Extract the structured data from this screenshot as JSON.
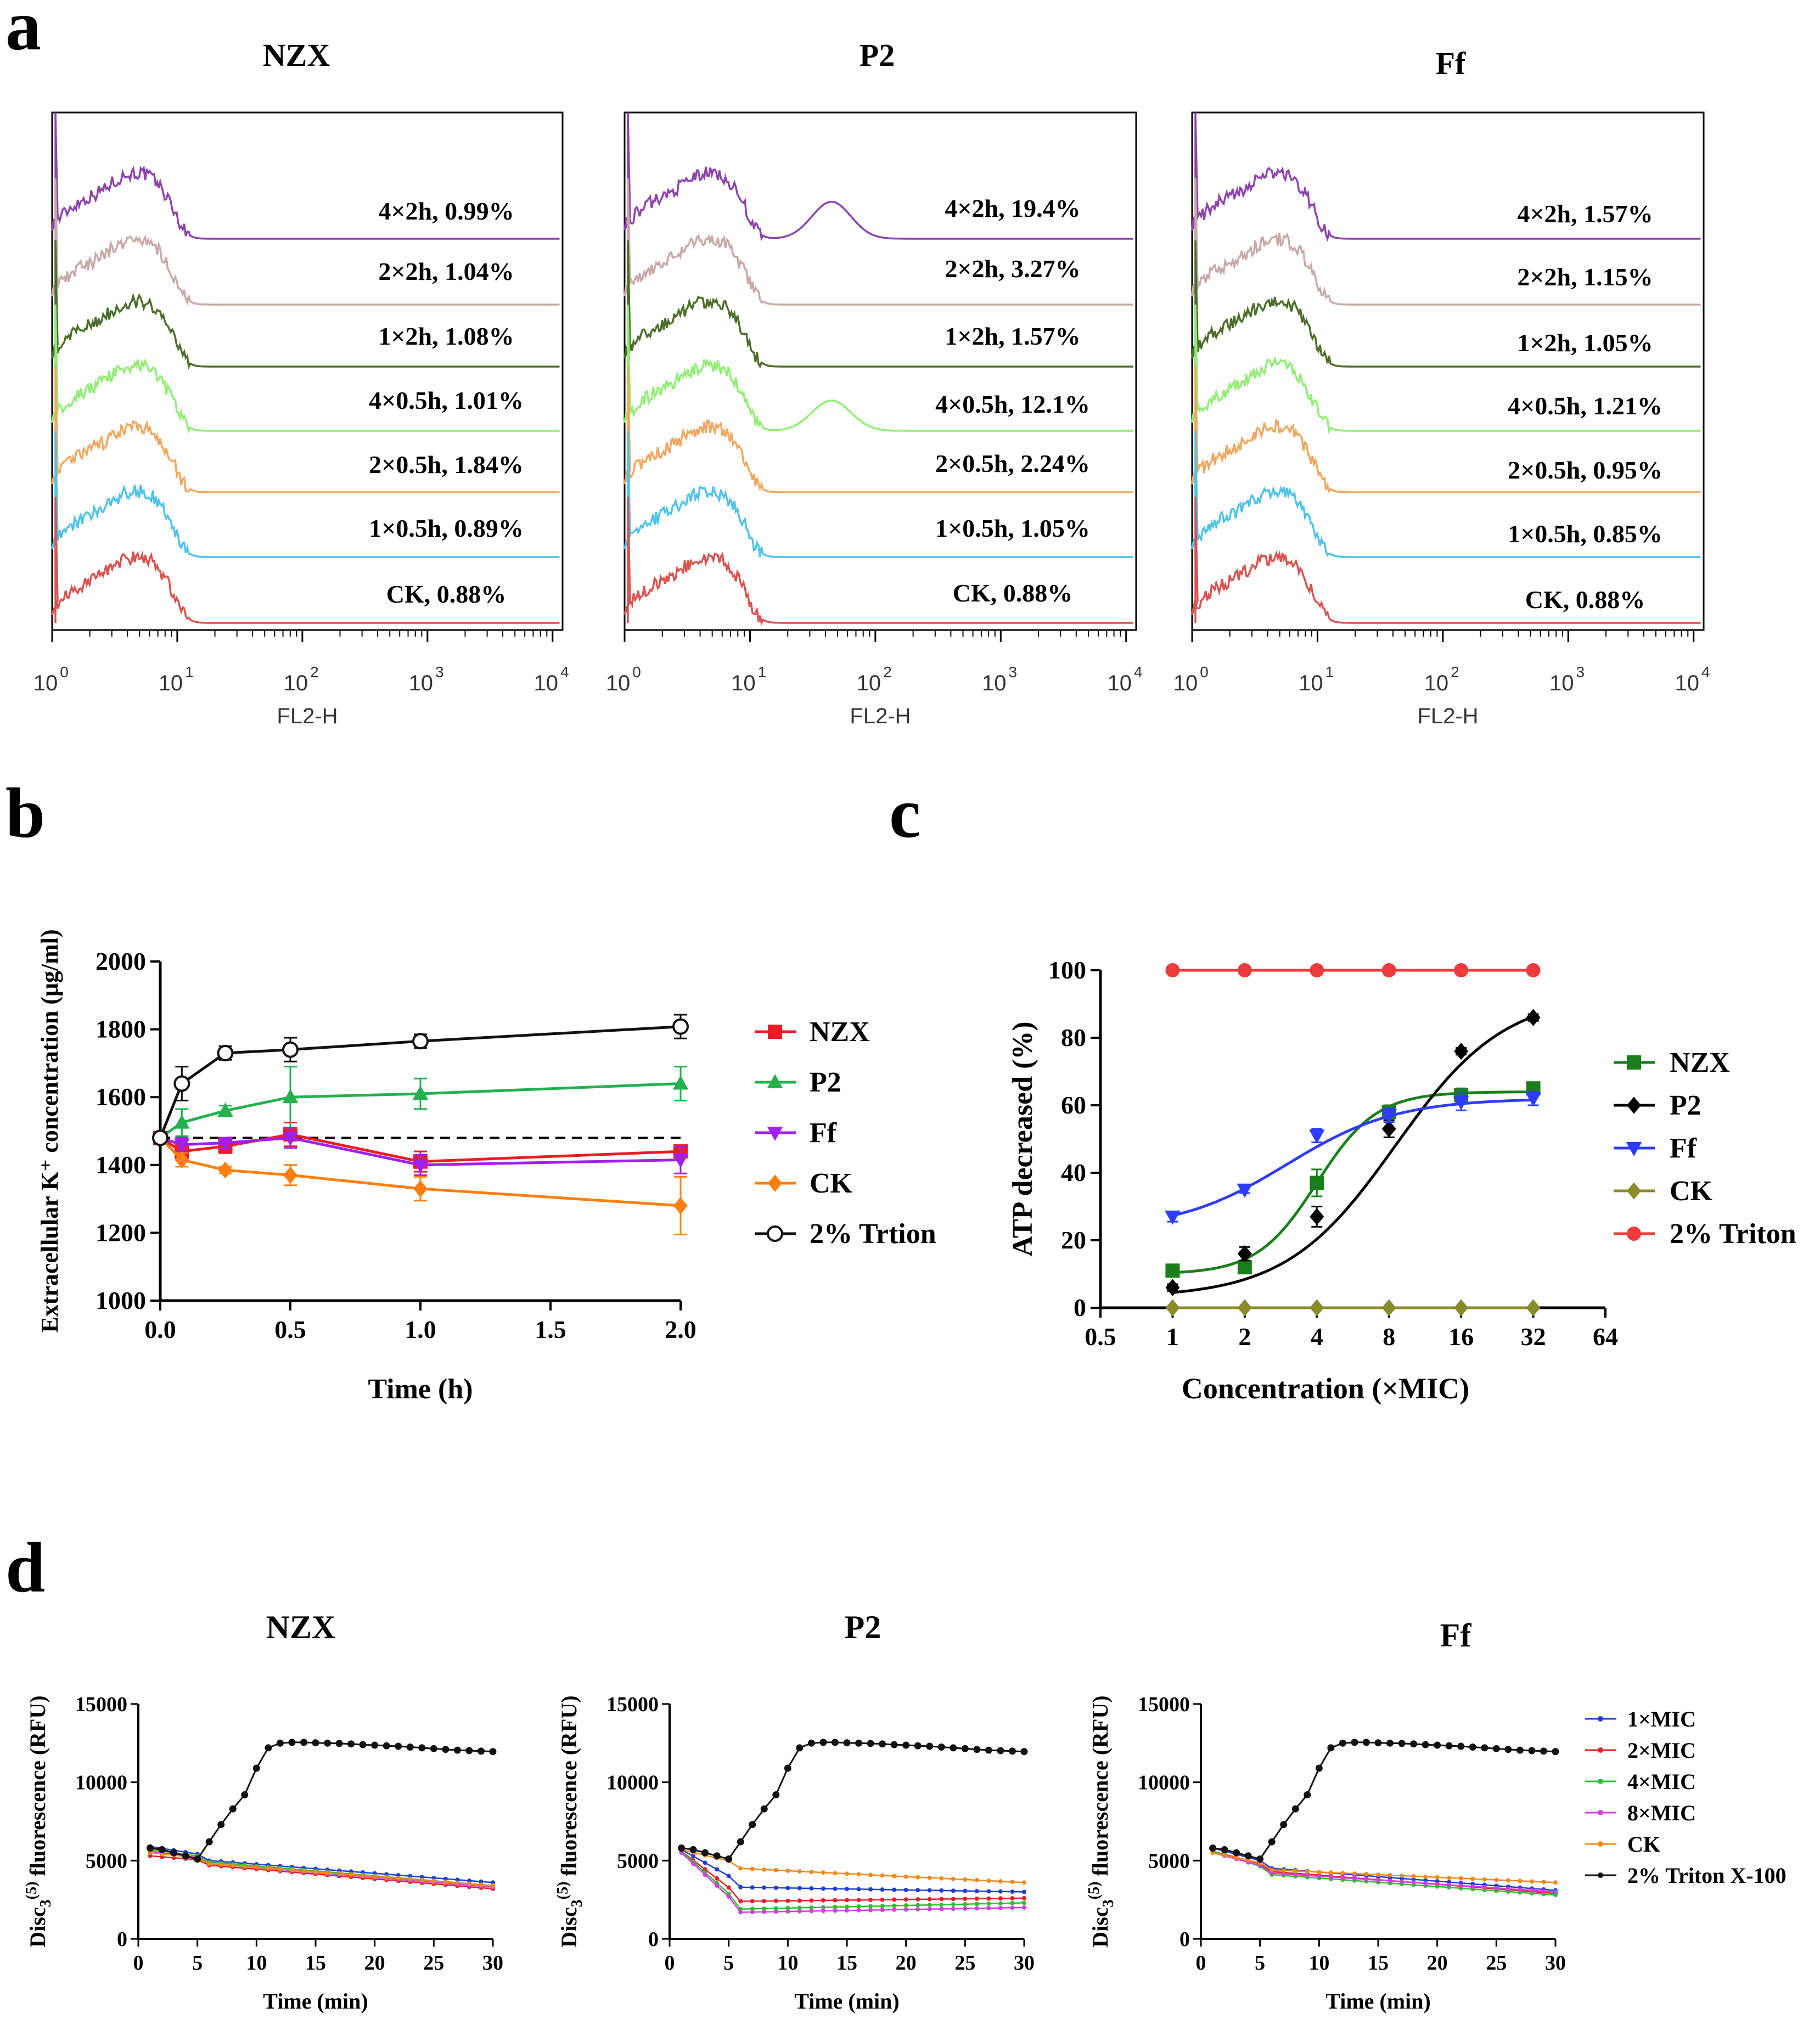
{
  "figure": {
    "panel_labels": [
      "a",
      "b",
      "c",
      "d"
    ]
  },
  "chart_data": [
    {
      "id": "a",
      "type": "histogram",
      "xlabel": "FL2-H",
      "x_scale": "log",
      "x_ticks": [
        "0",
        "1",
        "2",
        "3",
        "4"
      ],
      "x_tick_base": "10",
      "subpanels": [
        {
          "title": "NZX",
          "traces": [
            {
              "label": "4×2h, 0.99%",
              "color": "#8e44ad",
              "second_peak": 0
            },
            {
              "label": "2×2h, 1.04%",
              "color": "#c9a9a6",
              "second_peak": 0
            },
            {
              "label": "1×2h, 1.08%",
              "color": "#4b6e2a",
              "second_peak": 0
            },
            {
              "label": "4×0.5h, 1.01%",
              "color": "#90ee74",
              "second_peak": 0
            },
            {
              "label": "2×0.5h, 1.84%",
              "color": "#f0a860",
              "second_peak": 0
            },
            {
              "label": "1×0.5h, 0.89%",
              "color": "#4fc3e8",
              "second_peak": 0
            },
            {
              "label": "CK, 0.88%",
              "color": "#d9534f",
              "second_peak": 0
            }
          ]
        },
        {
          "title": "P2",
          "traces": [
            {
              "label": "4×2h, 19.4%",
              "color": "#8e44ad",
              "second_peak": 0.55
            },
            {
              "label": "2×2h, 3.27%",
              "color": "#c9a9a6",
              "second_peak": 0
            },
            {
              "label": "1×2h, 1.57%",
              "color": "#4b6e2a",
              "second_peak": 0
            },
            {
              "label": "4×0.5h, 12.1%",
              "color": "#90ee74",
              "second_peak": 0.45
            },
            {
              "label": "2×0.5h, 2.24%",
              "color": "#f0a860",
              "second_peak": 0
            },
            {
              "label": "1×0.5h, 1.05%",
              "color": "#4fc3e8",
              "second_peak": 0
            },
            {
              "label": "CK, 0.88%",
              "color": "#d9534f",
              "second_peak": 0
            }
          ]
        },
        {
          "title": "Ff",
          "traces": [
            {
              "label": "4×2h, 1.57%",
              "color": "#8e44ad",
              "second_peak": 0
            },
            {
              "label": "2×2h, 1.15%",
              "color": "#c9a9a6",
              "second_peak": 0
            },
            {
              "label": "1×2h, 1.05%",
              "color": "#4b6e2a",
              "second_peak": 0
            },
            {
              "label": "4×0.5h, 1.21%",
              "color": "#90ee74",
              "second_peak": 0
            },
            {
              "label": "2×0.5h, 0.95%",
              "color": "#f0a860",
              "second_peak": 0
            },
            {
              "label": "1×0.5h, 0.85%",
              "color": "#4fc3e8",
              "second_peak": 0
            },
            {
              "label": "CK, 0.88%",
              "color": "#d9534f",
              "second_peak": 0
            }
          ]
        }
      ]
    },
    {
      "id": "b",
      "type": "line",
      "xlabel": "Time (h)",
      "ylabel": "Extracellular K⁺ concentration (μg/ml)",
      "xlim": [
        0,
        2
      ],
      "ylim": [
        1000,
        2000
      ],
      "x_ticks": [
        0,
        0.5,
        1,
        1.5,
        2
      ],
      "x_tick_labels": [
        "0.0",
        "0.5",
        "1.0",
        "1.5",
        "2.0"
      ],
      "y_ticks": [
        1000,
        1200,
        1400,
        1600,
        1800,
        2000
      ],
      "baseline": 1480,
      "x": [
        0,
        0.083,
        0.25,
        0.5,
        1,
        2
      ],
      "series": [
        {
          "name": "NZX",
          "color": "#ee1c25",
          "marker": "square",
          "values": [
            1480,
            1440,
            1455,
            1490,
            1410,
            1440
          ],
          "errors": [
            10,
            20,
            20,
            35,
            30,
            15
          ]
        },
        {
          "name": "P2",
          "color": "#22b14c",
          "marker": "triangle",
          "values": [
            1480,
            1525,
            1560,
            1600,
            1610,
            1640
          ],
          "errors": [
            10,
            40,
            15,
            90,
            45,
            50
          ]
        },
        {
          "name": "Ff",
          "color": "#a020f0",
          "marker": "triangle-down",
          "values": [
            1480,
            1460,
            1465,
            1480,
            1400,
            1415
          ],
          "errors": [
            10,
            20,
            15,
            30,
            30,
            40
          ]
        },
        {
          "name": "CK",
          "color": "#ff7f0e",
          "marker": "diamond",
          "values": [
            1480,
            1415,
            1385,
            1370,
            1330,
            1280
          ],
          "errors": [
            10,
            20,
            10,
            30,
            35,
            85
          ]
        },
        {
          "name": "2% Trtion",
          "color": "#111111",
          "marker": "circle-open",
          "values": [
            1480,
            1640,
            1730,
            1740,
            1765,
            1808
          ],
          "errors": [
            10,
            50,
            20,
            35,
            20,
            35
          ]
        }
      ]
    },
    {
      "id": "c",
      "type": "line",
      "xlabel": "Concentration (×MIC)",
      "ylabel": "ATP decreased (%)",
      "x_scale": "log2",
      "xlim": [
        0.5,
        64
      ],
      "ylim": [
        0,
        100
      ],
      "x_ticks": [
        0.5,
        1,
        2,
        4,
        8,
        16,
        32,
        64
      ],
      "x_tick_labels": [
        "0.5",
        "1",
        "2",
        "4",
        "8",
        "16",
        "32",
        "64"
      ],
      "y_ticks": [
        0,
        20,
        40,
        60,
        80,
        100
      ],
      "x": [
        1,
        2,
        4,
        8,
        16,
        32
      ],
      "series": [
        {
          "name": "NZX",
          "color": "#1a7f1a",
          "marker": "square",
          "values": [
            11,
            12,
            37,
            58,
            63,
            65
          ],
          "errors": [
            1,
            1.5,
            4,
            2,
            2,
            1.5
          ],
          "fit": {
            "bottom": 10,
            "top": 64,
            "ec50": 4,
            "hill": 3.5
          }
        },
        {
          "name": "P2",
          "color": "#000000",
          "marker": "diamond",
          "values": [
            6,
            16,
            27,
            53,
            76,
            86
          ],
          "errors": [
            1,
            2,
            3,
            2.5,
            1,
            1
          ],
          "fit": {
            "bottom": 3,
            "top": 93,
            "ec50": 8.5,
            "hill": 1.9
          }
        },
        {
          "name": "Ff",
          "color": "#2d3cff",
          "marker": "triangle-down",
          "values": [
            27,
            35,
            51,
            57,
            61,
            62
          ],
          "errors": [
            1.5,
            1,
            2,
            2,
            2.5,
            2
          ],
          "fit": {
            "bottom": 23,
            "top": 62,
            "ec50": 3,
            "hill": 1.9
          }
        },
        {
          "name": "CK",
          "color": "#8b8b2a",
          "marker": "diamond",
          "values": [
            0,
            0,
            0,
            0,
            0,
            0
          ],
          "errors": [
            0,
            0,
            0,
            0,
            0,
            0
          ]
        },
        {
          "name": "2% Triton",
          "color": "#ef3b3b",
          "marker": "circle",
          "values": [
            100,
            100,
            100,
            100,
            100,
            100
          ],
          "errors": [
            0,
            0,
            0,
            0,
            0,
            0
          ]
        }
      ]
    },
    {
      "id": "d",
      "type": "line",
      "xlabel": "Time (min)",
      "ylabel_main": "Disc",
      "ylabel_sub": "3",
      "ylabel_sup": "(5)",
      "ylabel_rest": " fluorescence (RFU)",
      "xlim": [
        0,
        30
      ],
      "ylim": [
        0,
        15000
      ],
      "x_ticks": [
        0,
        5,
        10,
        15,
        20,
        25,
        30
      ],
      "y_ticks": [
        0,
        5000,
        10000,
        15000
      ],
      "legend": [
        {
          "name": "1×MIC",
          "color": "#1f3ed6"
        },
        {
          "name": "2×MIC",
          "color": "#e5202a"
        },
        {
          "name": "4×MIC",
          "color": "#2fbf2f"
        },
        {
          "name": "8×MIC",
          "color": "#d63ee0"
        },
        {
          "name": "CK",
          "color": "#f08a1c"
        },
        {
          "name": "2% Triton X-100",
          "color": "#111111"
        }
      ],
      "triton": [
        5800,
        5700,
        5500,
        5300,
        5100,
        6200,
        7300,
        8300,
        9200,
        10900,
        12200,
        12500,
        12550,
        12550,
        12520,
        12500,
        12480,
        12450,
        12400,
        12370,
        12330,
        12300,
        12250,
        12200,
        12150,
        12100,
        12050,
        12020,
        11990,
        11960
      ],
      "subpanels": [
        {
          "title": "NZX",
          "series": [
            {
              "name": "1×MIC",
              "start": 5900,
              "step_to": 5000,
              "end": 3600
            },
            {
              "name": "2×MIC",
              "start": 5300,
              "step_to": 4700,
              "end": 3200
            },
            {
              "name": "4×MIC",
              "start": 5700,
              "step_to": 4900,
              "end": 3400
            },
            {
              "name": "8×MIC",
              "start": 5600,
              "step_to": 4800,
              "end": 3300
            },
            {
              "name": "CK",
              "start": 5500,
              "step_to": 4800,
              "end": 3400
            }
          ]
        },
        {
          "title": "P2",
          "series": [
            {
              "name": "1×MIC",
              "start": 5700,
              "step_to": 3300,
              "end": 3000
            },
            {
              "name": "2×MIC",
              "start": 5600,
              "step_to": 2400,
              "end": 2600
            },
            {
              "name": "4×MIC",
              "start": 5600,
              "step_to": 1900,
              "end": 2300
            },
            {
              "name": "8×MIC",
              "start": 5500,
              "step_to": 1700,
              "end": 2000
            },
            {
              "name": "CK",
              "start": 5700,
              "step_to": 4500,
              "end": 3600
            }
          ]
        },
        {
          "title": "Ff",
          "series": [
            {
              "name": "1×MIC",
              "start": 5800,
              "step_to": 4500,
              "end": 3100
            },
            {
              "name": "2×MIC",
              "start": 5600,
              "step_to": 4300,
              "end": 2900
            },
            {
              "name": "4×MIC",
              "start": 5600,
              "step_to": 4100,
              "end": 2800
            },
            {
              "name": "8×MIC",
              "start": 5500,
              "step_to": 4200,
              "end": 3000
            },
            {
              "name": "CK",
              "start": 5500,
              "step_to": 4400,
              "end": 3600
            }
          ]
        }
      ]
    }
  ]
}
